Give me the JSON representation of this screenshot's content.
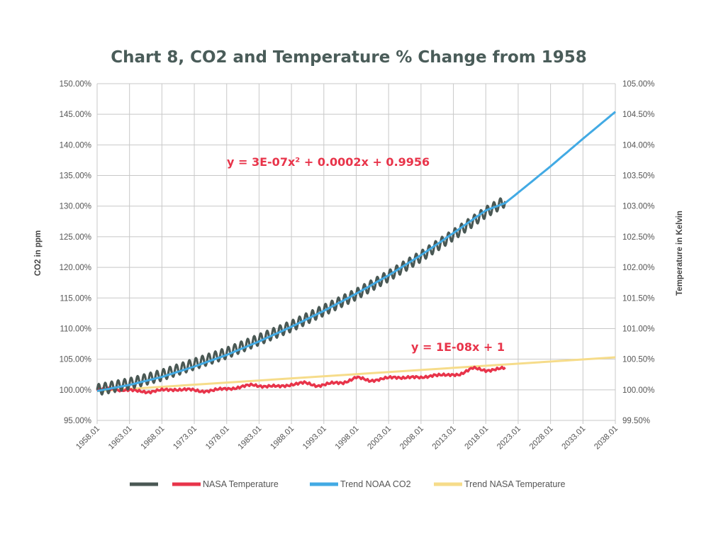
{
  "chart_data": {
    "type": "line",
    "title": "Chart 8, CO2 and Temperature % Change from 1958",
    "ylabel_left": "CO2 in ppm",
    "ylabel_right": "Temperature in Kelvin",
    "x_ticks": [
      "1958.01",
      "1963.01",
      "1968.01",
      "1973.01",
      "1978.01",
      "1983.01",
      "1988.01",
      "1993.01",
      "1998.01",
      "2003.01",
      "2008.01",
      "2013.01",
      "2018.01",
      "2023.01",
      "2028.01",
      "2033.01",
      "2038.01"
    ],
    "xlim": [
      1958,
      2038
    ],
    "ylim_left": [
      0.95,
      1.5
    ],
    "ylim_right": [
      0.995,
      1.05
    ],
    "y_ticks_left": [
      "95.00%",
      "100.00%",
      "105.00%",
      "110.00%",
      "115.00%",
      "120.00%",
      "125.00%",
      "130.00%",
      "135.00%",
      "140.00%",
      "145.00%",
      "150.00%"
    ],
    "y_ticks_right": [
      "99.50%",
      "100.00%",
      "100.50%",
      "101.00%",
      "101.50%",
      "102.00%",
      "102.50%",
      "103.00%",
      "103.50%",
      "104.00%",
      "104.50%",
      "105.00%"
    ],
    "grid": true,
    "legend_position": "bottom",
    "colors": {
      "co2": "#4a5854",
      "temp": "#e8344a",
      "trend_co2": "#42aae4",
      "trend_temp": "#f6dc8a",
      "title": "#4a5c59"
    },
    "series": [
      {
        "name": "",
        "axis": "left",
        "color": "#4a5854",
        "x": [
          1958,
          1963,
          1968,
          1973,
          1978,
          1983,
          1988,
          1993,
          1998,
          2003,
          2008,
          2013,
          2018,
          2021
        ],
        "y": [
          1.0,
          1.01,
          1.024,
          1.042,
          1.06,
          1.082,
          1.104,
          1.13,
          1.156,
          1.186,
          1.218,
          1.253,
          1.29,
          1.308
        ],
        "seasonal_amplitude": 0.009
      },
      {
        "name": "NASA Temperature",
        "axis": "left",
        "color": "#e8344a",
        "x": [
          1958,
          1960,
          1962,
          1964,
          1966,
          1968,
          1970,
          1972,
          1974,
          1976,
          1978,
          1980,
          1982,
          1984,
          1986,
          1988,
          1990,
          1992,
          1994,
          1996,
          1998,
          2000,
          2002,
          2004,
          2006,
          2008,
          2010,
          2012,
          2014,
          2016,
          2018,
          2020,
          2021
        ],
        "y": [
          1.0,
          1.001,
          1.0,
          0.998,
          0.997,
          0.999,
          1.001,
          1.0,
          0.998,
          0.999,
          1.002,
          1.004,
          1.008,
          1.006,
          1.005,
          1.009,
          1.011,
          1.007,
          1.01,
          1.012,
          1.02,
          1.015,
          1.018,
          1.02,
          1.021,
          1.019,
          1.025,
          1.023,
          1.026,
          1.035,
          1.032,
          1.034,
          1.035
        ]
      },
      {
        "name": "Trend NOAA CO2",
        "axis": "left",
        "color": "#42aae4",
        "x": [
          1958,
          1963,
          1968,
          1973,
          1978,
          1983,
          1988,
          1993,
          1998,
          2003,
          2008,
          2013,
          2018,
          2021,
          2023,
          2028,
          2033,
          2038
        ],
        "y": [
          0.998,
          1.008,
          1.021,
          1.038,
          1.057,
          1.079,
          1.103,
          1.129,
          1.157,
          1.187,
          1.22,
          1.256,
          1.293,
          1.305,
          1.322,
          1.365,
          1.41,
          1.454
        ]
      },
      {
        "name": "Trend NASA Temperature",
        "axis": "left",
        "color": "#f6dc8a",
        "x": [
          1958,
          2038
        ],
        "y": [
          0.998,
          1.053
        ]
      }
    ],
    "annotations": [
      {
        "text": "y = 3E-07x² + 0.0002x + 0.9956",
        "color": "#e8344a"
      },
      {
        "text": "y = 1E-08x + 1",
        "color": "#e8344a"
      }
    ]
  }
}
